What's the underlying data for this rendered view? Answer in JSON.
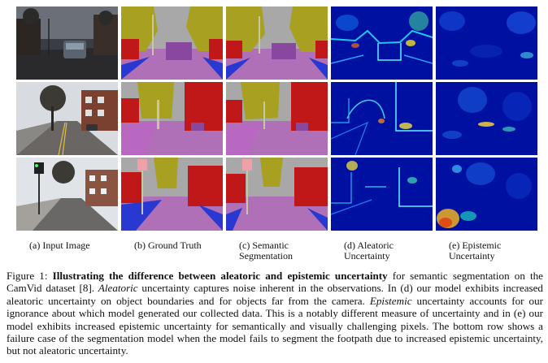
{
  "figure": {
    "rows": [
      {
        "input": "city-street-row-1",
        "ground_truth": "segmentation-row-1",
        "semantic": "segmentation-row-1",
        "aleatoric": "uncertainty-map-row-1",
        "epistemic": "uncertainty-map-row-1"
      },
      {
        "input": "city-street-row-2",
        "ground_truth": "segmentation-row-2",
        "semantic": "segmentation-row-2",
        "aleatoric": "uncertainty-map-row-2",
        "epistemic": "uncertainty-map-row-2"
      },
      {
        "input": "city-street-row-3",
        "ground_truth": "segmentation-row-3",
        "semantic": "segmentation-row-3",
        "aleatoric": "uncertainty-map-row-3",
        "epistemic": "uncertainty-map-row-3"
      }
    ],
    "column_labels": [
      {
        "line1": "(a) Input Image",
        "line2": ""
      },
      {
        "line1": "(b) Ground Truth",
        "line2": ""
      },
      {
        "line1": "(c) Semantic",
        "line2": "Segmentation"
      },
      {
        "line1": "(d) Aleatoric",
        "line2": "Uncertainty"
      },
      {
        "line1": "(e) Epistemic",
        "line2": "Uncertainty"
      }
    ],
    "colors": {
      "sky": "#a8a8a8",
      "road": "#b070b8",
      "building": "#c01818",
      "tree": "#a8a020",
      "sidewalk": "#2838d0",
      "pole": "#c8c8a0",
      "uncertainty_bg": "#0010a0"
    }
  },
  "caption": {
    "prefix": "Figure 1: ",
    "title": "Illustrating the difference between aleatoric and epistemic uncertainty",
    "after_title": " for semantic segmentation on the CamVid dataset [8]. ",
    "aleatoric_word": "Aleatoric",
    "after_aleatoric": " uncertainty captures noise inherent in the observations. In (d) our model exhibits increased aleatoric uncertainty on object boundaries and for objects far from the camera. ",
    "epistemic_word": "Epistemic",
    "after_epistemic": " uncertainty accounts for our ignorance about which model generated our collected data. This is a notably different measure of uncertainty and in (e) our model exhibits increased epistemic uncertainty for semantically and visually challenging pixels. The bottom row shows a failure case of the segmentation model when the model fails to segment the footpath due to increased epistemic uncertainty, but not aleatoric uncertainty."
  }
}
